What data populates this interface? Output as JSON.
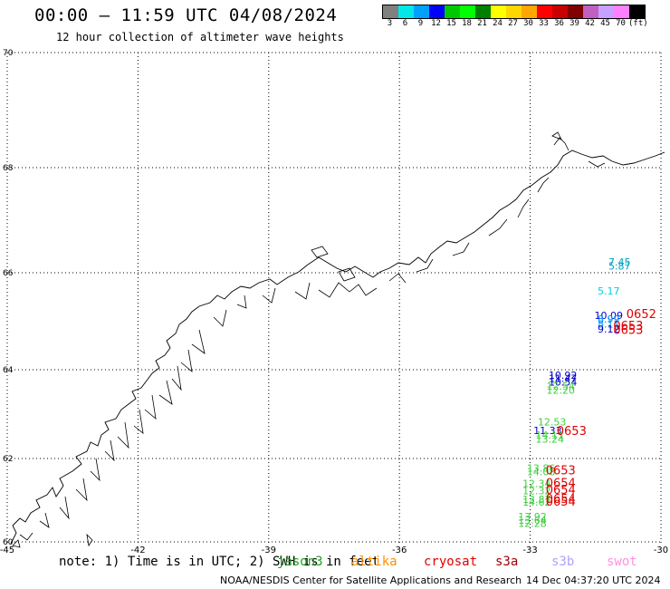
{
  "title": "00:00 – 11:59 UTC 04/08/2024",
  "subtitle": "12 hour collection of altimeter wave heights",
  "colorbar": {
    "colors": [
      "#808080",
      "#00e8e8",
      "#00a0ff",
      "#0000ff",
      "#00c800",
      "#00ff00",
      "#008000",
      "#ffff00",
      "#ffd700",
      "#ffa500",
      "#ff0000",
      "#c80000",
      "#800000",
      "#c060c0",
      "#c8a0ff",
      "#ff80ff",
      "#000000"
    ],
    "labels": [
      "3",
      "6",
      "9",
      "12",
      "15",
      "18",
      "21",
      "24",
      "27",
      "30",
      "33",
      "36",
      "39",
      "42",
      "45",
      "70",
      "(ft)"
    ]
  },
  "map": {
    "lat_labels": [
      "70",
      "68",
      "66",
      "64",
      "62",
      "60"
    ],
    "lon_labels": [
      "-45",
      "-42",
      "-39",
      "-36",
      "-33",
      "-30"
    ],
    "observations": [
      {
        "text": "7.45",
        "lon": -30.95,
        "lat": 66.14,
        "color": "#00a0c0"
      },
      {
        "text": "5.87",
        "lon": -30.95,
        "lat": 66.06,
        "color": "#00a0c0"
      },
      {
        "text": "5.17",
        "lon": -31.2,
        "lat": 65.55,
        "color": "#00d0e0"
      },
      {
        "text": "10.09",
        "lon": -31.2,
        "lat": 65.05,
        "color": "#0000c8"
      },
      {
        "text": "8.99",
        "lon": -31.2,
        "lat": 64.97,
        "color": "#0090ff"
      },
      {
        "text": "8.11",
        "lon": -31.2,
        "lat": 64.87,
        "color": "#0090ff"
      },
      {
        "text": "9.12",
        "lon": -31.2,
        "lat": 64.77,
        "color": "#0000c8"
      },
      {
        "text": "10.92",
        "lon": -32.25,
        "lat": 63.8,
        "color": "#0000c8"
      },
      {
        "text": "11.47",
        "lon": -32.25,
        "lat": 63.72,
        "color": "#0000c8"
      },
      {
        "text": "10.54",
        "lon": -32.25,
        "lat": 63.64,
        "color": "#0000c8"
      },
      {
        "text": "12.54",
        "lon": -32.3,
        "lat": 63.55,
        "color": "#40d040"
      },
      {
        "text": "12.20",
        "lon": -32.3,
        "lat": 63.46,
        "color": "#40d040"
      },
      {
        "text": "12.53",
        "lon": -32.5,
        "lat": 62.75,
        "color": "#40d040"
      },
      {
        "text": "11.33",
        "lon": -32.6,
        "lat": 62.55,
        "color": "#0000c8"
      },
      {
        "text": "14.11",
        "lon": -32.55,
        "lat": 62.45,
        "color": "#40d040"
      },
      {
        "text": "13.24",
        "lon": -32.55,
        "lat": 62.36,
        "color": "#40d040"
      },
      {
        "text": "13.86",
        "lon": -32.75,
        "lat": 61.68,
        "color": "#40d040"
      },
      {
        "text": "14.08",
        "lon": -32.75,
        "lat": 61.6,
        "color": "#40d040"
      },
      {
        "text": "12.34",
        "lon": -32.85,
        "lat": 61.31,
        "color": "#40d040"
      },
      {
        "text": "12.32",
        "lon": -32.85,
        "lat": 61.14,
        "color": "#40d040"
      },
      {
        "text": "13.87",
        "lon": -32.85,
        "lat": 60.93,
        "color": "#40d040"
      },
      {
        "text": "14.62",
        "lon": -32.85,
        "lat": 60.87,
        "color": "#40d040"
      },
      {
        "text": "13.92",
        "lon": -32.95,
        "lat": 60.52,
        "color": "#40d040"
      },
      {
        "text": "13.64",
        "lon": -32.95,
        "lat": 60.44,
        "color": "#40d040"
      },
      {
        "text": "12.28",
        "lon": -32.95,
        "lat": 60.36,
        "color": "#40d040"
      }
    ],
    "time_tags": [
      {
        "text": "0652",
        "lon": -30.45,
        "lat": 65.07,
        "color": "#e00000"
      },
      {
        "text": "0653",
        "lon": -30.75,
        "lat": 64.82,
        "color": "#e00000"
      },
      {
        "text": "0653",
        "lon": -30.75,
        "lat": 64.74,
        "color": "#e00000"
      },
      {
        "text": "0653",
        "lon": -32.05,
        "lat": 62.53,
        "color": "#e00000"
      },
      {
        "text": "0653",
        "lon": -32.3,
        "lat": 61.62,
        "color": "#e00000"
      },
      {
        "text": "0654",
        "lon": -32.3,
        "lat": 61.32,
        "color": "#e00000"
      },
      {
        "text": "0654",
        "lon": -32.3,
        "lat": 61.15,
        "color": "#e00000"
      },
      {
        "text": "0654",
        "lon": -32.3,
        "lat": 60.93,
        "color": "#e00000"
      },
      {
        "text": "0654",
        "lon": -32.3,
        "lat": 60.87,
        "color": "#e00000"
      }
    ]
  },
  "note": "note: 1) Time is in UTC; 2) SWH is in feet",
  "legend": [
    {
      "label": "jason3",
      "color": "#20a020"
    },
    {
      "label": "altika",
      "color": "#ff9000"
    },
    {
      "label": "cryosat",
      "color": "#e00000"
    },
    {
      "label": "s3a",
      "color": "#a00000"
    },
    {
      "label": "s3b",
      "color": "#b0a0ff"
    },
    {
      "label": "swot",
      "color": "#ff90e0"
    }
  ],
  "footer": "NOAA/NESDIS Center for Satellite Applications and Research",
  "footer_date": "14 Dec 04:37:20 UTC 2024"
}
